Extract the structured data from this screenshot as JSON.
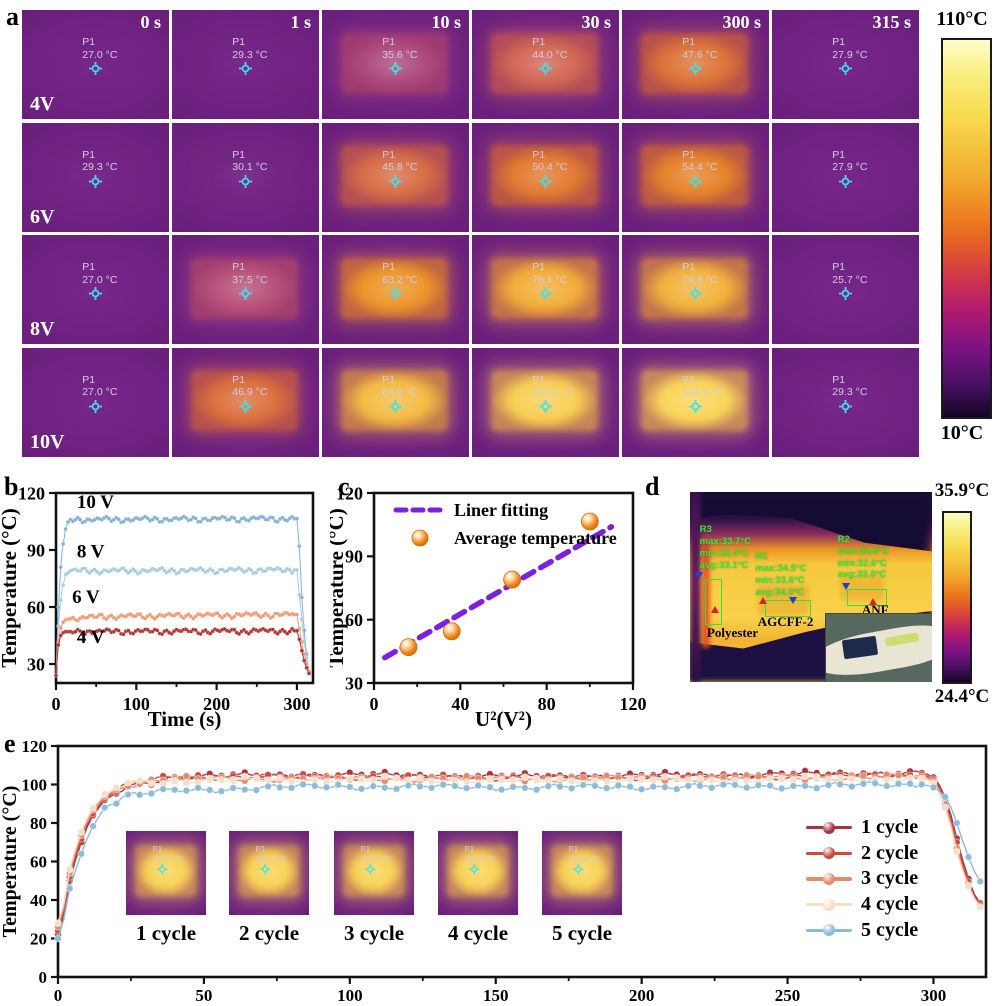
{
  "figure": {
    "panel_labels": {
      "a": "a",
      "b": "b",
      "c": "c",
      "d": "d",
      "e": "e"
    }
  },
  "panel_a": {
    "time_labels": [
      "0 s",
      "1 s",
      "10 s",
      "30 s",
      "300 s",
      "315 s"
    ],
    "rows": [
      {
        "voltage": "4V",
        "temps": [
          27.0,
          29.3,
          35.6,
          44.0,
          47.6,
          27.9
        ]
      },
      {
        "voltage": "6V",
        "temps": [
          29.3,
          30.1,
          45.8,
          50.4,
          54.4,
          27.9
        ]
      },
      {
        "voltage": "8V",
        "temps": [
          27.0,
          37.5,
          63.2,
          76.1,
          78.8,
          25.7
        ]
      },
      {
        "voltage": "10V",
        "temps": [
          27.0,
          46.9,
          84.5,
          101.1,
          105.5,
          29.3
        ]
      }
    ],
    "point_label": "P1",
    "unit_suffix": " °C",
    "colorbar": {
      "top": "110°C",
      "bottom": "10°C"
    }
  },
  "panel_d": {
    "colorbar": {
      "top": "35.9°C",
      "bottom": "24.4°C"
    },
    "regions": [
      {
        "id": "R3",
        "lines": [
          "max:33.7°C",
          "min:32.4°C",
          "avg:33.1°C"
        ],
        "material": "Polyester"
      },
      {
        "id": "R1",
        "lines": [
          "max:34.5°C",
          "min:33.6°C",
          "avg:34.0°C"
        ],
        "material": "AGCFF-2"
      },
      {
        "id": "R2",
        "lines": [
          "max:33.6°C",
          "min:32.6°C",
          "avg:33.0°C"
        ],
        "material": "ANF"
      }
    ]
  },
  "panel_e": {
    "insets": [
      {
        "p1": "P1",
        "temp": "105.5 °C",
        "caption": "1 cycle"
      },
      {
        "p1": "P1",
        "temp": "105.1 °C",
        "caption": "2 cycle"
      },
      {
        "p1": "P1",
        "temp": "104.4 °C",
        "caption": "3 cycle"
      },
      {
        "p1": "P1",
        "temp": "104.0 °C",
        "caption": "4 cycle"
      },
      {
        "p1": "P1",
        "temp": "101.8 °C",
        "caption": "5 cycle"
      }
    ],
    "legend": [
      {
        "label": "1 cycle",
        "color": "#a93440"
      },
      {
        "label": "2 cycle",
        "color": "#c94b42"
      },
      {
        "label": "3 cycle",
        "color": "#e08d6d"
      },
      {
        "label": "4 cycle",
        "color": "#f6dfc8"
      },
      {
        "label": "5 cycle",
        "color": "#8cbcda"
      }
    ]
  },
  "chart_data": [
    {
      "id": "b",
      "type": "line",
      "xlabel": "Time (s)",
      "ylabel": "Temperature (°C)",
      "xlim": [
        0,
        320
      ],
      "ylim": [
        20,
        120
      ],
      "xticks": [
        0,
        100,
        200,
        300
      ],
      "yticks": [
        30,
        60,
        90,
        120
      ],
      "legend_position": "in-plot-labels",
      "grid": false,
      "series": [
        {
          "name": "10 V",
          "color": "#85afd3",
          "label_xy": [
            26,
            112
          ],
          "keypoints": [
            [
              0,
              24
            ],
            [
              3,
              60
            ],
            [
              7,
              88
            ],
            [
              12,
              101
            ],
            [
              16,
              106
            ],
            [
              300,
              106.5
            ],
            [
              303,
              92
            ],
            [
              306,
              65
            ],
            [
              310,
              42
            ],
            [
              313,
              32
            ],
            [
              315,
              26
            ]
          ]
        },
        {
          "name": "8 V",
          "color": "#a6cbe1",
          "label_xy": [
            26,
            86
          ],
          "keypoints": [
            [
              0,
              24
            ],
            [
              3,
              50
            ],
            [
              7,
              68
            ],
            [
              12,
              77
            ],
            [
              18,
              79
            ],
            [
              300,
              79.5
            ],
            [
              304,
              62
            ],
            [
              308,
              45
            ],
            [
              312,
              33
            ],
            [
              315,
              26
            ]
          ]
        },
        {
          "name": "6 V",
          "color": "#f09a72",
          "label_xy": [
            20,
            62
          ],
          "keypoints": [
            [
              0,
              24
            ],
            [
              2,
              38
            ],
            [
              5,
              48
            ],
            [
              10,
              53
            ],
            [
              20,
              54
            ],
            [
              60,
              55
            ],
            [
              150,
              55.5
            ],
            [
              300,
              56
            ],
            [
              304,
              46
            ],
            [
              308,
              37
            ],
            [
              312,
              30
            ],
            [
              315,
              26
            ]
          ]
        },
        {
          "name": "4 V",
          "color": "#b23331",
          "label_xy": [
            26,
            41
          ],
          "keypoints": [
            [
              0,
              24
            ],
            [
              1,
              30
            ],
            [
              3,
              40
            ],
            [
              6,
              45
            ],
            [
              10,
              47
            ],
            [
              300,
              47.5
            ],
            [
              303,
              43
            ],
            [
              306,
              37
            ],
            [
              310,
              30
            ],
            [
              315,
              25
            ]
          ]
        }
      ]
    },
    {
      "id": "c",
      "type": "scatter",
      "xlabel": "U²(V²)",
      "ylabel": "Temperature (°C)",
      "xlim": [
        0,
        120
      ],
      "ylim": [
        30,
        120
      ],
      "xticks": [
        0,
        40,
        80,
        120
      ],
      "yticks": [
        30,
        60,
        90,
        120
      ],
      "points": [
        [
          16,
          47
        ],
        [
          36,
          54.5
        ],
        [
          64,
          79
        ],
        [
          100,
          106.5
        ]
      ],
      "fit": {
        "x1": 5,
        "y1": 42,
        "x2": 110,
        "y2": 104
      },
      "fit_color": "#7d1fe0",
      "point_color": "#f5861d",
      "legend": [
        {
          "label": "Liner fitting"
        },
        {
          "label": "Average temperature"
        }
      ],
      "legend_position": "upper-left"
    },
    {
      "id": "e",
      "type": "line",
      "xlabel": "",
      "ylabel": "Temperature (°C)",
      "xlim": [
        0,
        318
      ],
      "ylim": [
        0,
        120
      ],
      "xticks": [
        0,
        50,
        100,
        150,
        200,
        250,
        300
      ],
      "yticks": [
        0,
        20,
        40,
        60,
        80,
        100,
        120
      ],
      "legend_position": "right-inside",
      "grid": false,
      "series": [
        {
          "name": "1 cycle",
          "color": "#a93440",
          "keypoints": [
            [
              0,
              22
            ],
            [
              2,
              32
            ],
            [
              4,
              50
            ],
            [
              7,
              66
            ],
            [
              11,
              82
            ],
            [
              16,
              92
            ],
            [
              24,
              99
            ],
            [
              40,
              104
            ],
            [
              90,
              105
            ],
            [
              160,
              104
            ],
            [
              240,
              105
            ],
            [
              297,
              106
            ],
            [
              301,
              103
            ],
            [
              305,
              90
            ],
            [
              308,
              72
            ],
            [
              311,
              55
            ],
            [
              314,
              43
            ],
            [
              317,
              36
            ]
          ]
        },
        {
          "name": "2 cycle",
          "color": "#c94b42",
          "keypoints": [
            [
              0,
              24
            ],
            [
              2,
              34
            ],
            [
              4,
              52
            ],
            [
              7,
              68
            ],
            [
              11,
              83
            ],
            [
              16,
              93
            ],
            [
              24,
              100
            ],
            [
              40,
              104
            ],
            [
              90,
              104
            ],
            [
              160,
              103.5
            ],
            [
              240,
              104
            ],
            [
              297,
              105
            ],
            [
              301,
              102
            ],
            [
              305,
              88
            ],
            [
              308,
              70
            ],
            [
              311,
              53
            ],
            [
              314,
              42
            ],
            [
              317,
              35
            ]
          ]
        },
        {
          "name": "3 cycle",
          "color": "#e08d6d",
          "keypoints": [
            [
              0,
              26
            ],
            [
              2,
              36
            ],
            [
              4,
              54
            ],
            [
              7,
              70
            ],
            [
              11,
              85
            ],
            [
              16,
              94
            ],
            [
              24,
              100
            ],
            [
              40,
              103
            ],
            [
              90,
              103
            ],
            [
              160,
              103
            ],
            [
              240,
              103.5
            ],
            [
              297,
              104
            ],
            [
              301,
              101
            ],
            [
              305,
              86
            ],
            [
              308,
              67
            ],
            [
              311,
              51
            ],
            [
              314,
              41
            ],
            [
              317,
              34
            ]
          ]
        },
        {
          "name": "4 cycle",
          "color": "#f6dfc8",
          "keypoints": [
            [
              0,
              28
            ],
            [
              2,
              38
            ],
            [
              4,
              56
            ],
            [
              7,
              72
            ],
            [
              11,
              86
            ],
            [
              16,
              95
            ],
            [
              24,
              101
            ],
            [
              40,
              102
            ],
            [
              90,
              102.5
            ],
            [
              160,
              102
            ],
            [
              240,
              102.5
            ],
            [
              297,
              103
            ],
            [
              301,
              100
            ],
            [
              305,
              84
            ],
            [
              308,
              65
            ],
            [
              311,
              50
            ],
            [
              314,
              41
            ],
            [
              317,
              34
            ]
          ]
        },
        {
          "name": "5 cycle",
          "color": "#8cbcda",
          "keypoints": [
            [
              0,
              20
            ],
            [
              2,
              30
            ],
            [
              4,
              46
            ],
            [
              7,
              60
            ],
            [
              11,
              76
            ],
            [
              16,
              88
            ],
            [
              24,
              94
            ],
            [
              40,
              97
            ],
            [
              90,
              99
            ],
            [
              160,
              98.5
            ],
            [
              240,
              99
            ],
            [
              297,
              100
            ],
            [
              301,
              98
            ],
            [
              305,
              92
            ],
            [
              308,
              80
            ],
            [
              311,
              66
            ],
            [
              314,
              55
            ],
            [
              317,
              47
            ]
          ]
        }
      ]
    }
  ]
}
